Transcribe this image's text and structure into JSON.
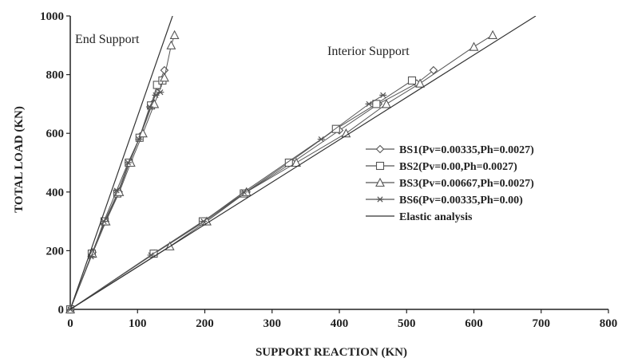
{
  "chart_data": {
    "type": "line",
    "title": "",
    "xlabel": "SUPPORT REACTION (KN)",
    "ylabel": "TOTAL LOAD (KN)",
    "xlim": [
      0,
      800
    ],
    "ylim": [
      0,
      1000
    ],
    "x_ticks": [
      "0",
      "100",
      "200",
      "300",
      "400",
      "500",
      "600",
      "700",
      "800"
    ],
    "y_ticks": [
      "0",
      "200",
      "400",
      "600",
      "800",
      "1000"
    ],
    "grid": false,
    "legend_placement": "right",
    "annotations": [
      "End Support",
      "Interior Support"
    ],
    "series": [
      {
        "name": "BS1(Pv=0.00335,Ph=0.0027)",
        "marker": "diamond",
        "color": "#555555",
        "points": [
          [
            0,
            0
          ],
          [
            33,
            195
          ],
          [
            52,
            300
          ],
          [
            72,
            400
          ],
          [
            88,
            500
          ],
          [
            104,
            590
          ],
          [
            122,
            700
          ],
          [
            130,
            760
          ],
          [
            140,
            815
          ]
        ]
      },
      {
        "name": "BS2(Pv=0.00,Ph=0.0027)",
        "marker": "square",
        "color": "#555555",
        "points": [
          [
            0,
            0
          ],
          [
            32,
            190
          ],
          [
            51,
            300
          ],
          [
            70,
            395
          ],
          [
            87,
            500
          ],
          [
            103,
            585
          ],
          [
            120,
            695
          ],
          [
            129,
            765
          ],
          [
            137,
            780
          ]
        ]
      },
      {
        "name": "BS3(Pv=0.00667,Ph=0.0027)",
        "marker": "triangle",
        "color": "#555555",
        "points": [
          [
            0,
            0
          ],
          [
            33,
            190
          ],
          [
            53,
            300
          ],
          [
            73,
            400
          ],
          [
            90,
            500
          ],
          [
            108,
            600
          ],
          [
            125,
            700
          ],
          [
            140,
            790
          ],
          [
            150,
            900
          ],
          [
            155,
            935
          ]
        ]
      },
      {
        "name": "BS6(Pv=0.00335,Ph=0.00)",
        "marker": "asterisk",
        "color": "#555555",
        "points": [
          [
            0,
            0
          ],
          [
            31,
            180
          ],
          [
            50,
            300
          ],
          [
            69,
            405
          ],
          [
            86,
            500
          ],
          [
            102,
            580
          ],
          [
            118,
            690
          ],
          [
            127,
            730
          ],
          [
            134,
            740
          ]
        ]
      },
      {
        "name": "",
        "marker": "diamond",
        "color": "#555555",
        "points": [
          [
            0,
            0
          ],
          [
            125,
            190
          ],
          [
            200,
            300
          ],
          [
            262,
            400
          ],
          [
            330,
            500
          ],
          [
            400,
            610
          ],
          [
            458,
            700
          ],
          [
            515,
            770
          ],
          [
            540,
            815
          ]
        ]
      },
      {
        "name": "",
        "marker": "square",
        "color": "#555555",
        "points": [
          [
            0,
            0
          ],
          [
            124,
            190
          ],
          [
            197,
            300
          ],
          [
            258,
            395
          ],
          [
            325,
            500
          ],
          [
            395,
            615
          ],
          [
            455,
            700
          ],
          [
            508,
            780
          ]
        ]
      },
      {
        "name": "",
        "marker": "triangle",
        "color": "#555555",
        "points": [
          [
            0,
            0
          ],
          [
            148,
            215
          ],
          [
            203,
            300
          ],
          [
            262,
            400
          ],
          [
            336,
            500
          ],
          [
            410,
            600
          ],
          [
            470,
            700
          ],
          [
            520,
            770
          ],
          [
            600,
            895
          ],
          [
            628,
            935
          ]
        ]
      },
      {
        "name": "",
        "marker": "asterisk",
        "color": "#555555",
        "points": [
          [
            0,
            0
          ],
          [
            120,
            185
          ],
          [
            198,
            300
          ],
          [
            258,
            400
          ],
          [
            373,
            580
          ],
          [
            444,
            700
          ],
          [
            465,
            730
          ]
        ]
      },
      {
        "name": "Elastic analysis",
        "marker": "none",
        "color": "#333333",
        "points": [
          [
            0,
            0
          ],
          [
            152,
            1000
          ]
        ]
      },
      {
        "name": "",
        "marker": "none",
        "color": "#333333",
        "points": [
          [
            0,
            0
          ],
          [
            692,
            1000
          ]
        ]
      }
    ]
  }
}
